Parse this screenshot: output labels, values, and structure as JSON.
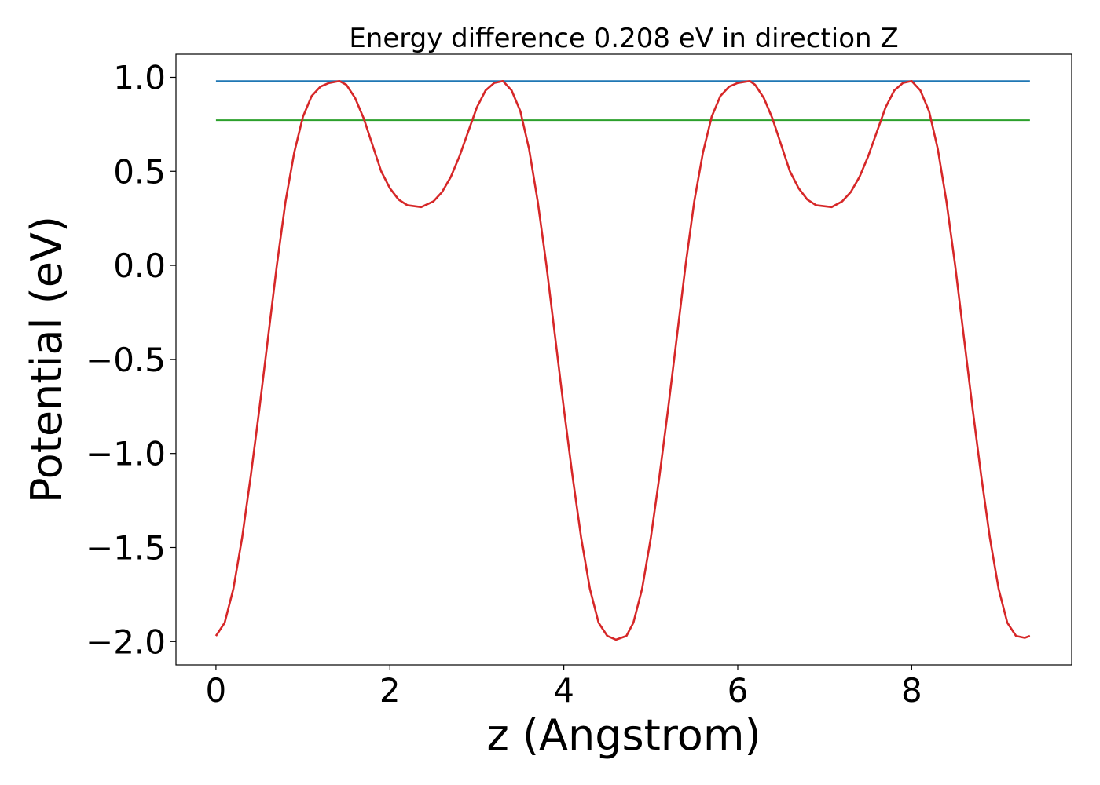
{
  "chart_data": {
    "type": "line",
    "title": "Energy difference 0.208 eV in direction Z",
    "xlabel": "z (Angstrom)",
    "ylabel": "Potential (eV)",
    "xlim": [
      -0.46,
      9.84
    ],
    "ylim": [
      -2.124,
      1.123
    ],
    "xticks": [
      0,
      2,
      4,
      6,
      8
    ],
    "xtick_labels": [
      "0",
      "2",
      "4",
      "6",
      "8"
    ],
    "yticks": [
      -2.0,
      -1.5,
      -1.0,
      -0.5,
      0.0,
      0.5,
      1.0
    ],
    "ytick_labels": [
      "−2.0",
      "−1.5",
      "−1.0",
      "−0.5",
      "0.0",
      "0.5",
      "1.0"
    ],
    "grid": false,
    "legend": "none",
    "series": [
      {
        "color": "#d62728",
        "x": [
          0.0,
          0.1,
          0.2,
          0.3,
          0.4,
          0.5,
          0.6,
          0.7,
          0.8,
          0.9,
          1.0,
          1.1,
          1.2,
          1.3,
          1.42,
          1.5,
          1.6,
          1.7,
          1.8,
          1.9,
          2.0,
          2.1,
          2.2,
          2.36,
          2.5,
          2.6,
          2.7,
          2.8,
          2.9,
          3.0,
          3.1,
          3.2,
          3.3,
          3.4,
          3.5,
          3.6,
          3.7,
          3.8,
          3.9,
          4.0,
          4.1,
          4.2,
          4.3,
          4.4,
          4.5,
          4.6,
          4.72,
          4.8,
          4.9,
          5.0,
          5.1,
          5.2,
          5.3,
          5.4,
          5.5,
          5.6,
          5.7,
          5.8,
          5.9,
          6.0,
          6.14,
          6.2,
          6.3,
          6.4,
          6.5,
          6.6,
          6.7,
          6.8,
          6.9,
          7.08,
          7.2,
          7.3,
          7.4,
          7.5,
          7.6,
          7.7,
          7.8,
          7.9,
          8.0,
          8.1,
          8.2,
          8.3,
          8.4,
          8.5,
          8.6,
          8.7,
          8.8,
          8.9,
          9.0,
          9.1,
          9.2,
          9.3,
          9.36
        ],
        "y": [
          -1.97,
          -1.9,
          -1.72,
          -1.45,
          -1.12,
          -0.76,
          -0.38,
          0.0,
          0.34,
          0.6,
          0.79,
          0.9,
          0.95,
          0.97,
          0.98,
          0.96,
          0.89,
          0.78,
          0.64,
          0.5,
          0.41,
          0.35,
          0.32,
          0.31,
          0.34,
          0.39,
          0.47,
          0.58,
          0.71,
          0.84,
          0.93,
          0.97,
          0.98,
          0.93,
          0.82,
          0.62,
          0.34,
          0.0,
          -0.38,
          -0.76,
          -1.12,
          -1.45,
          -1.72,
          -1.9,
          -1.97,
          -1.99,
          -1.97,
          -1.9,
          -1.72,
          -1.45,
          -1.12,
          -0.76,
          -0.38,
          0.0,
          0.34,
          0.6,
          0.79,
          0.9,
          0.95,
          0.97,
          0.98,
          0.96,
          0.89,
          0.78,
          0.64,
          0.5,
          0.41,
          0.35,
          0.32,
          0.31,
          0.34,
          0.39,
          0.47,
          0.58,
          0.71,
          0.84,
          0.93,
          0.97,
          0.98,
          0.93,
          0.82,
          0.62,
          0.34,
          0.0,
          -0.38,
          -0.76,
          -1.12,
          -1.45,
          -1.72,
          -1.9,
          -1.97,
          -1.98,
          -1.97
        ]
      },
      {
        "color": "#1f77b4",
        "x": [
          0.0,
          9.36
        ],
        "y": [
          0.98,
          0.98
        ]
      },
      {
        "color": "#2ca02c",
        "x": [
          0.0,
          9.36
        ],
        "y": [
          0.772,
          0.772
        ]
      }
    ]
  }
}
